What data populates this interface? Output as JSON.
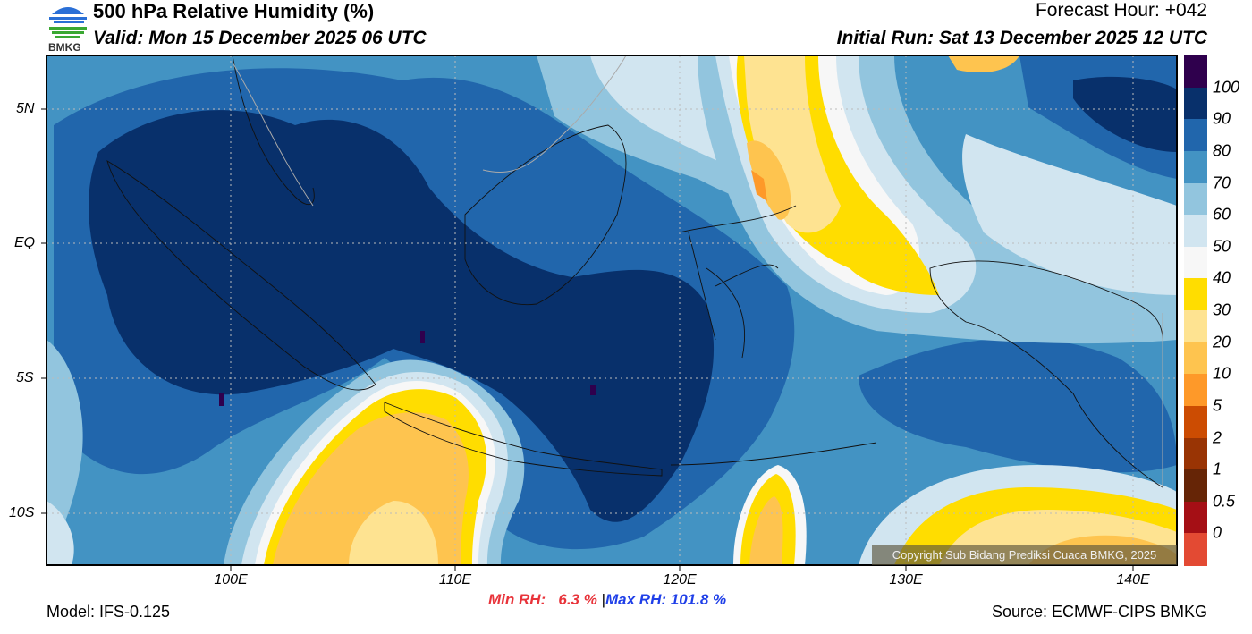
{
  "header": {
    "logo_text": "BMKG",
    "title": "500 hPa Relative Humidity (%)",
    "valid": "Valid: Mon 15 December 2025 06 UTC",
    "forecast_hour": "Forecast Hour: +042",
    "initial_run": "Initial Run: Sat 13 December 2025 12 UTC"
  },
  "map": {
    "lon_ticks": [
      "100E",
      "110E",
      "120E",
      "130E",
      "140E"
    ],
    "lat_ticks": [
      "5N",
      "EQ",
      "5S",
      "10S"
    ],
    "copyright": "Copyright Sub Bidang Prediksi Cuaca BMKG, 2025"
  },
  "colorbar": {
    "labels": [
      "100",
      "90",
      "80",
      "70",
      "60",
      "50",
      "40",
      "30",
      "20",
      "10",
      "5",
      "2",
      "1",
      "0.5",
      "0"
    ],
    "colors": [
      "#2f004d",
      "#08306b",
      "#2166ac",
      "#4393c3",
      "#92c5de",
      "#d1e5f0",
      "#f7f7f7",
      "#ffdd00",
      "#fee391",
      "#fec44f",
      "#fe9929",
      "#cc4c02",
      "#993404",
      "#662506",
      "#a50f15",
      "#e34a33"
    ]
  },
  "footer": {
    "model": "Model: IFS-0.125",
    "min_rh": "Min RH:   6.3 %",
    "separator": "|",
    "max_rh": "Max RH: 101.8 %",
    "source": "Source: ECMWF-CIPS BMKG",
    "min_color": "#e8333a",
    "max_color": "#1f3fe8"
  }
}
